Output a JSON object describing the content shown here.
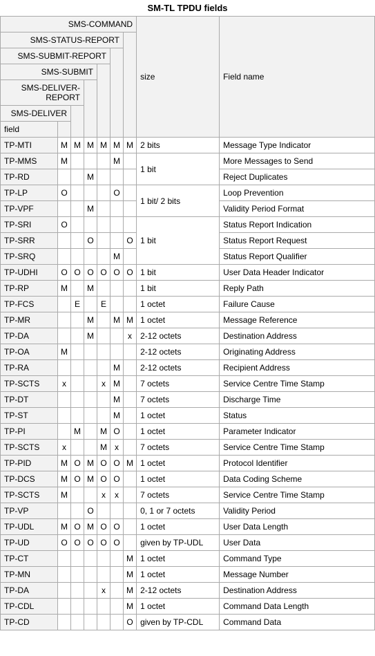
{
  "caption": "SM-TL TPDU fields",
  "header_row_labels": [
    "SMS-COMMAND",
    "SMS-STATUS-REPORT",
    "SMS-SUBMIT-REPORT",
    "SMS-SUBMIT",
    "SMS-DELIVER-REPORT",
    "SMS-DELIVER"
  ],
  "header_field": "field",
  "header_size": "size",
  "header_name": "Field name",
  "rows": [
    {
      "field": "TP-MTI",
      "m": [
        "M",
        "M",
        "M",
        "M",
        "M",
        "M"
      ],
      "size": "2 bits",
      "name": "Message Type Indicator"
    },
    {
      "field": "TP-MMS",
      "m": [
        "M",
        "",
        "",
        "",
        "M",
        ""
      ],
      "size": "1 bit",
      "name": "More Messages to Send",
      "size_rowspan": 2
    },
    {
      "field": "TP-RD",
      "m": [
        "",
        "",
        "M",
        "",
        "",
        ""
      ],
      "name": "Reject Duplicates"
    },
    {
      "field": "TP-LP",
      "m": [
        "O",
        "",
        "",
        "",
        "O",
        ""
      ],
      "size": "1 bit/ 2 bits",
      "name": "Loop Prevention",
      "size_rowspan": 2
    },
    {
      "field": "TP-VPF",
      "m": [
        "",
        "",
        "M",
        "",
        "",
        ""
      ],
      "name": "Validity Period Format"
    },
    {
      "field": "TP-SRI",
      "m": [
        "O",
        "",
        "",
        "",
        "",
        ""
      ],
      "size": "1 bit",
      "name": "Status Report Indication",
      "size_rowspan": 3
    },
    {
      "field": "TP-SRR",
      "m": [
        "",
        "",
        "O",
        "",
        "",
        "O"
      ],
      "name": "Status Report Request"
    },
    {
      "field": "TP-SRQ",
      "m": [
        "",
        "",
        "",
        "",
        "M",
        ""
      ],
      "name": "Status Report Qualifier"
    },
    {
      "field": "TP-UDHI",
      "m": [
        "O",
        "O",
        "O",
        "O",
        "O",
        "O"
      ],
      "size": "1 bit",
      "name": "User Data Header Indicator"
    },
    {
      "field": "TP-RP",
      "m": [
        "M",
        "",
        "M",
        "",
        "",
        ""
      ],
      "size": "1 bit",
      "name": "Reply Path"
    },
    {
      "field": "TP-FCS",
      "m": [
        "",
        "E",
        "",
        "E",
        "",
        ""
      ],
      "size": "1 octet",
      "name": "Failure Cause"
    },
    {
      "field": "TP-MR",
      "m": [
        "",
        "",
        "M",
        "",
        "M",
        "M"
      ],
      "size": "1 octet",
      "name": "Message Reference"
    },
    {
      "field": "TP-DA",
      "m": [
        "",
        "",
        "M",
        "",
        "",
        "x"
      ],
      "size": "2-12 octets",
      "name": "Destination Address"
    },
    {
      "field": "TP-OA",
      "m": [
        "M",
        "",
        "",
        "",
        "",
        ""
      ],
      "size": "2-12 octets",
      "name": "Originating Address"
    },
    {
      "field": "TP-RA",
      "m": [
        "",
        "",
        "",
        "",
        "M",
        ""
      ],
      "size": "2-12 octets",
      "name": "Recipient Address"
    },
    {
      "field": "TP-SCTS",
      "m": [
        "x",
        "",
        "",
        "x",
        "M",
        ""
      ],
      "size": "7 octets",
      "name": "Service Centre Time Stamp"
    },
    {
      "field": "TP-DT",
      "m": [
        "",
        "",
        "",
        "",
        "M",
        ""
      ],
      "size": "7 octets",
      "name": "Discharge Time"
    },
    {
      "field": "TP-ST",
      "m": [
        "",
        "",
        "",
        "",
        "M",
        ""
      ],
      "size": "1 octet",
      "name": "Status"
    },
    {
      "field": "TP-PI",
      "m": [
        "",
        "M",
        "",
        "M",
        "O",
        ""
      ],
      "size": "1 octet",
      "name": "Parameter Indicator"
    },
    {
      "field": "TP-SCTS",
      "m": [
        "x",
        "",
        "",
        "M",
        "x",
        ""
      ],
      "size": "7 octets",
      "name": "Service Centre Time Stamp"
    },
    {
      "field": "TP-PID",
      "m": [
        "M",
        "O",
        "M",
        "O",
        "O",
        "M"
      ],
      "size": "1 octet",
      "name": "Protocol Identifier"
    },
    {
      "field": "TP-DCS",
      "m": [
        "M",
        "O",
        "M",
        "O",
        "O",
        ""
      ],
      "size": "1 octet",
      "name": "Data Coding Scheme"
    },
    {
      "field": "TP-SCTS",
      "m": [
        "M",
        "",
        "",
        "x",
        "x",
        ""
      ],
      "size": "7 octets",
      "name": "Service Centre Time Stamp"
    },
    {
      "field": "TP-VP",
      "m": [
        "",
        "",
        "O",
        "",
        "",
        ""
      ],
      "size": "0, 1 or 7 octets",
      "name": "Validity Period"
    },
    {
      "field": "TP-UDL",
      "m": [
        "M",
        "O",
        "M",
        "O",
        "O",
        ""
      ],
      "size": "1 octet",
      "name": "User Data Length"
    },
    {
      "field": "TP-UD",
      "m": [
        "O",
        "O",
        "O",
        "O",
        "O",
        ""
      ],
      "size": "given by TP-UDL",
      "name": "User Data"
    },
    {
      "field": "TP-CT",
      "m": [
        "",
        "",
        "",
        "",
        "",
        "M"
      ],
      "size": "1 octet",
      "name": "Command Type"
    },
    {
      "field": "TP-MN",
      "m": [
        "",
        "",
        "",
        "",
        "",
        "M"
      ],
      "size": "1 octet",
      "name": "Message Number"
    },
    {
      "field": "TP-DA",
      "m": [
        "",
        "",
        "",
        "x",
        "",
        "M"
      ],
      "size": "2-12 octets",
      "name": "Destination Address"
    },
    {
      "field": "TP-CDL",
      "m": [
        "",
        "",
        "",
        "",
        "",
        "M"
      ],
      "size": "1 octet",
      "name": "Command Data Length"
    },
    {
      "field": "TP-CD",
      "m": [
        "",
        "",
        "",
        "",
        "",
        "O"
      ],
      "size": "given by TP-CDL",
      "name": "Command Data"
    }
  ]
}
